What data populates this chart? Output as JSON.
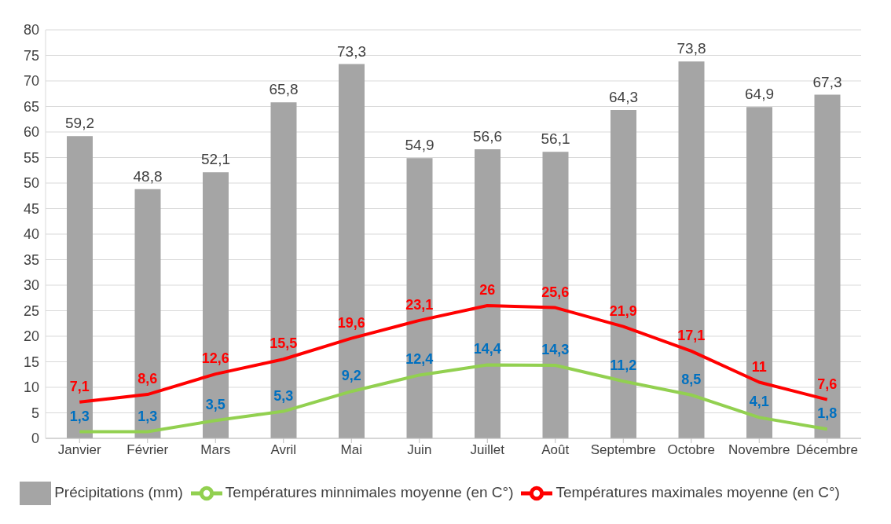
{
  "chart_data": {
    "type": "bar",
    "categories": [
      "Janvier",
      "Février",
      "Mars",
      "Avril",
      "Mai",
      "Juin",
      "Juillet",
      "Août",
      "Septembre",
      "Octobre",
      "Novembre",
      "Décembre"
    ],
    "series": [
      {
        "name": "Précipitations (mm)",
        "color": "#a5a5a5",
        "values": [
          59.2,
          48.8,
          52.1,
          65.8,
          73.3,
          54.9,
          56.6,
          56.1,
          64.3,
          73.8,
          64.9,
          67.3
        ],
        "value_labels": [
          "59,2",
          "48,8",
          "52,1",
          "65,8",
          "73,3",
          "54,9",
          "56,6",
          "56,1",
          "64,3",
          "73,8",
          "64,9",
          "67,3"
        ]
      },
      {
        "name": "Températures  minnimales moyenne (en C°)",
        "type": "line",
        "color": "#92d050",
        "values": [
          1.3,
          1.3,
          3.5,
          5.3,
          9.2,
          12.4,
          14.4,
          14.3,
          11.2,
          8.5,
          4.1,
          1.8
        ],
        "value_labels": [
          "1,3",
          "1,3",
          "3,5",
          "5,3",
          "9,2",
          "12,4",
          "14,4",
          "14,3",
          "11,2",
          "8,5",
          "4,1",
          "1,8"
        ]
      },
      {
        "name": "Températures maximales moyenne (en C°)",
        "type": "line",
        "color": "#ff0000",
        "values": [
          7.1,
          8.6,
          12.6,
          15.5,
          19.6,
          23.1,
          26,
          25.6,
          21.9,
          17.1,
          11,
          7.6
        ],
        "value_labels": [
          "7,1",
          "8,6",
          "12,6",
          "15,5",
          "19,6",
          "23,1",
          "26",
          "25,6",
          "21,9",
          "17,1",
          "11",
          "7,6"
        ]
      }
    ],
    "ylim": [
      0,
      80
    ],
    "yticks": [
      0,
      5,
      10,
      15,
      20,
      25,
      30,
      35,
      40,
      45,
      50,
      55,
      60,
      65,
      70,
      75,
      80
    ],
    "grid": "y",
    "legend": "bottom"
  }
}
